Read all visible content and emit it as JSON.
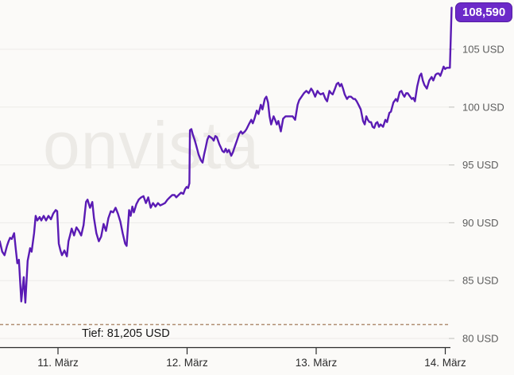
{
  "watermark_text": "onvista",
  "badge": {
    "label": "108,590"
  },
  "low_marker": {
    "label": "Tief: 81,205 USD"
  },
  "colors": {
    "background": "#fbfaf8",
    "line": "#5a1bb4",
    "badge_bg": "#6c2ac9",
    "badge_text": "#ffffff",
    "low_line": "#b08e72",
    "grid": "#ecebe8",
    "grid_stub": "#c9c8c4",
    "axis": "#2b2b2b",
    "x_label": "#2b2b2b",
    "y_label": "#5d5d5d",
    "watermark": "#eceae6",
    "tief_text": "#161616"
  },
  "chart_data": {
    "type": "line",
    "grid": "horizontal",
    "legend": "none",
    "x_axis": {
      "unit": "day of March",
      "range": [
        10.55,
        14.05
      ],
      "ticks": [
        {
          "value": 11,
          "label": "11. März"
        },
        {
          "value": 12,
          "label": "12. März"
        },
        {
          "value": 13,
          "label": "13. März"
        },
        {
          "value": 14,
          "label": "14. März"
        }
      ]
    },
    "y_axis": {
      "unit": "USD",
      "range": [
        79.4,
        109.3
      ],
      "ticks": [
        {
          "value": 105,
          "label": "105 USD"
        },
        {
          "value": 100,
          "label": "100 USD"
        },
        {
          "value": 95,
          "label": "95 USD"
        },
        {
          "value": 90,
          "label": "90 USD"
        },
        {
          "value": 85,
          "label": "85 USD"
        },
        {
          "value": 80,
          "label": "80 USD"
        }
      ]
    },
    "low_line": {
      "value": 81.205,
      "label": "Tief: 81,205 USD"
    },
    "last_value": 108.59,
    "last_value_label": "108,590",
    "series": [
      {
        "name": "price",
        "color": "#5a1bb4",
        "points": [
          [
            10.549,
            88.4
          ],
          [
            10.568,
            87.5
          ],
          [
            10.586,
            87.2
          ],
          [
            10.605,
            88.0
          ],
          [
            10.617,
            88.4
          ],
          [
            10.629,
            88.7
          ],
          [
            10.642,
            88.6
          ],
          [
            10.66,
            89.1
          ],
          [
            10.673,
            87.7
          ],
          [
            10.685,
            86.5
          ],
          [
            10.697,
            86.8
          ],
          [
            10.716,
            83.2
          ],
          [
            10.735,
            85.3
          ],
          [
            10.747,
            83.1
          ],
          [
            10.765,
            86.7
          ],
          [
            10.784,
            87.8
          ],
          [
            10.796,
            87.5
          ],
          [
            10.815,
            89.1
          ],
          [
            10.827,
            90.6
          ],
          [
            10.84,
            90.2
          ],
          [
            10.858,
            90.5
          ],
          [
            10.871,
            90.2
          ],
          [
            10.889,
            90.6
          ],
          [
            10.908,
            90.2
          ],
          [
            10.926,
            90.6
          ],
          [
            10.945,
            90.3
          ],
          [
            10.963,
            90.8
          ],
          [
            10.982,
            91.1
          ],
          [
            10.994,
            91.0
          ],
          [
            11.006,
            88.2
          ],
          [
            11.019,
            87.6
          ],
          [
            11.031,
            87.2
          ],
          [
            11.05,
            87.6
          ],
          [
            11.069,
            87.1
          ],
          [
            11.081,
            88.4
          ],
          [
            11.093,
            88.9
          ],
          [
            11.106,
            89.5
          ],
          [
            11.124,
            88.9
          ],
          [
            11.143,
            89.6
          ],
          [
            11.161,
            89.3
          ],
          [
            11.18,
            88.9
          ],
          [
            11.198,
            89.8
          ],
          [
            11.217,
            91.8
          ],
          [
            11.229,
            92.0
          ],
          [
            11.248,
            91.3
          ],
          [
            11.266,
            91.8
          ],
          [
            11.279,
            90.4
          ],
          [
            11.297,
            89.1
          ],
          [
            11.316,
            88.4
          ],
          [
            11.334,
            88.8
          ],
          [
            11.353,
            89.9
          ],
          [
            11.372,
            89.3
          ],
          [
            11.39,
            90.4
          ],
          [
            11.409,
            91.0
          ],
          [
            11.427,
            90.9
          ],
          [
            11.446,
            91.3
          ],
          [
            11.464,
            90.8
          ],
          [
            11.483,
            90.1
          ],
          [
            11.501,
            89.1
          ],
          [
            11.52,
            88.2
          ],
          [
            11.532,
            88.0
          ],
          [
            11.551,
            91.1
          ],
          [
            11.563,
            90.6
          ],
          [
            11.576,
            91.4
          ],
          [
            11.588,
            90.9
          ],
          [
            11.607,
            91.6
          ],
          [
            11.625,
            92.0
          ],
          [
            11.644,
            92.2
          ],
          [
            11.662,
            92.3
          ],
          [
            11.681,
            91.7
          ],
          [
            11.699,
            92.2
          ],
          [
            11.718,
            91.3
          ],
          [
            11.736,
            91.7
          ],
          [
            11.755,
            91.4
          ],
          [
            11.774,
            91.7
          ],
          [
            11.792,
            91.5
          ],
          [
            11.811,
            91.6
          ],
          [
            11.829,
            91.7
          ],
          [
            11.848,
            92.0
          ],
          [
            11.866,
            92.2
          ],
          [
            11.885,
            92.4
          ],
          [
            11.903,
            92.4
          ],
          [
            11.916,
            92.2
          ],
          [
            11.934,
            92.4
          ],
          [
            11.953,
            92.6
          ],
          [
            11.971,
            92.5
          ],
          [
            11.984,
            92.9
          ],
          [
            11.996,
            93.1
          ],
          [
            12.008,
            93.0
          ],
          [
            12.015,
            93.3
          ],
          [
            12.018,
            93.4
          ],
          [
            12.022,
            98.0
          ],
          [
            12.033,
            98.1
          ],
          [
            12.045,
            97.6
          ],
          [
            12.058,
            97.2
          ],
          [
            12.07,
            96.7
          ],
          [
            12.089,
            95.9
          ],
          [
            12.107,
            95.4
          ],
          [
            12.12,
            95.2
          ],
          [
            12.132,
            95.9
          ],
          [
            12.144,
            96.5
          ],
          [
            12.157,
            97.2
          ],
          [
            12.169,
            97.5
          ],
          [
            12.182,
            97.4
          ],
          [
            12.194,
            97.3
          ],
          [
            12.206,
            97.1
          ],
          [
            12.219,
            97.5
          ],
          [
            12.231,
            97.4
          ],
          [
            12.249,
            96.8
          ],
          [
            12.262,
            96.5
          ],
          [
            12.274,
            96.2
          ],
          [
            12.287,
            96.1
          ],
          [
            12.299,
            96.4
          ],
          [
            12.311,
            96.1
          ],
          [
            12.324,
            96.3
          ],
          [
            12.342,
            95.8
          ],
          [
            12.355,
            96.1
          ],
          [
            12.367,
            96.5
          ],
          [
            12.386,
            97.1
          ],
          [
            12.404,
            97.7
          ],
          [
            12.417,
            97.9
          ],
          [
            12.429,
            97.7
          ],
          [
            12.448,
            97.9
          ],
          [
            12.46,
            98.1
          ],
          [
            12.478,
            98.5
          ],
          [
            12.497,
            98.9
          ],
          [
            12.509,
            98.6
          ],
          [
            12.522,
            99.0
          ],
          [
            12.54,
            99.7
          ],
          [
            12.553,
            99.4
          ],
          [
            12.571,
            100.2
          ],
          [
            12.584,
            99.8
          ],
          [
            12.602,
            100.7
          ],
          [
            12.614,
            100.9
          ],
          [
            12.627,
            100.4
          ],
          [
            12.639,
            99.2
          ],
          [
            12.651,
            98.5
          ],
          [
            12.67,
            99.2
          ],
          [
            12.682,
            98.9
          ],
          [
            12.695,
            98.5
          ],
          [
            12.707,
            98.8
          ],
          [
            12.726,
            97.9
          ],
          [
            12.744,
            99.0
          ],
          [
            12.763,
            99.2
          ],
          [
            12.781,
            99.2
          ],
          [
            12.8,
            99.2
          ],
          [
            12.818,
            99.2
          ],
          [
            12.837,
            98.9
          ],
          [
            12.856,
            100.2
          ],
          [
            12.868,
            100.6
          ],
          [
            12.887,
            100.9
          ],
          [
            12.905,
            101.2
          ],
          [
            12.924,
            101.4
          ],
          [
            12.942,
            101.2
          ],
          [
            12.961,
            101.6
          ],
          [
            12.973,
            101.4
          ],
          [
            12.992,
            100.9
          ],
          [
            13.01,
            101.4
          ],
          [
            13.023,
            101.2
          ],
          [
            13.035,
            101.1
          ],
          [
            13.054,
            101.2
          ],
          [
            13.072,
            100.7
          ],
          [
            13.085,
            100.5
          ],
          [
            13.103,
            101.4
          ],
          [
            13.116,
            101.2
          ],
          [
            13.128,
            101.1
          ],
          [
            13.146,
            101.6
          ],
          [
            13.159,
            102.0
          ],
          [
            13.171,
            102.1
          ],
          [
            13.184,
            101.8
          ],
          [
            13.196,
            102.0
          ],
          [
            13.208,
            101.6
          ],
          [
            13.221,
            101.1
          ],
          [
            13.239,
            100.7
          ],
          [
            13.252,
            100.9
          ],
          [
            13.27,
            100.9
          ],
          [
            13.289,
            100.7
          ],
          [
            13.301,
            100.7
          ],
          [
            13.314,
            100.5
          ],
          [
            13.332,
            100.1
          ],
          [
            13.345,
            99.8
          ],
          [
            13.363,
            98.8
          ],
          [
            13.376,
            98.5
          ],
          [
            13.388,
            99.2
          ],
          [
            13.4,
            98.9
          ],
          [
            13.413,
            98.7
          ],
          [
            13.425,
            98.7
          ],
          [
            13.437,
            98.3
          ],
          [
            13.45,
            98.2
          ],
          [
            13.462,
            98.6
          ],
          [
            13.474,
            98.7
          ],
          [
            13.487,
            98.3
          ],
          [
            13.499,
            98.5
          ],
          [
            13.518,
            98.3
          ],
          [
            13.536,
            98.9
          ],
          [
            13.549,
            98.7
          ],
          [
            13.567,
            99.5
          ],
          [
            13.579,
            99.6
          ],
          [
            13.598,
            100.4
          ],
          [
            13.617,
            100.7
          ],
          [
            13.629,
            100.5
          ],
          [
            13.647,
            101.3
          ],
          [
            13.66,
            101.4
          ],
          [
            13.672,
            101.1
          ],
          [
            13.684,
            100.9
          ],
          [
            13.697,
            101.2
          ],
          [
            13.709,
            101.2
          ],
          [
            13.721,
            101.0
          ],
          [
            13.74,
            100.7
          ],
          [
            13.752,
            100.8
          ],
          [
            13.765,
            100.5
          ],
          [
            13.783,
            101.8
          ],
          [
            13.802,
            102.7
          ],
          [
            13.814,
            102.9
          ],
          [
            13.826,
            102.3
          ],
          [
            13.839,
            101.9
          ],
          [
            13.857,
            101.6
          ],
          [
            13.876,
            102.3
          ],
          [
            13.894,
            102.6
          ],
          [
            13.907,
            102.3
          ],
          [
            13.925,
            102.8
          ],
          [
            13.937,
            102.9
          ],
          [
            13.95,
            102.9
          ],
          [
            13.962,
            102.7
          ],
          [
            13.975,
            103.1
          ],
          [
            13.987,
            103.5
          ],
          [
            13.999,
            103.3
          ],
          [
            14.012,
            103.4
          ],
          [
            14.024,
            103.4
          ],
          [
            14.036,
            103.4
          ],
          [
            14.049,
            108.59
          ]
        ]
      }
    ]
  }
}
